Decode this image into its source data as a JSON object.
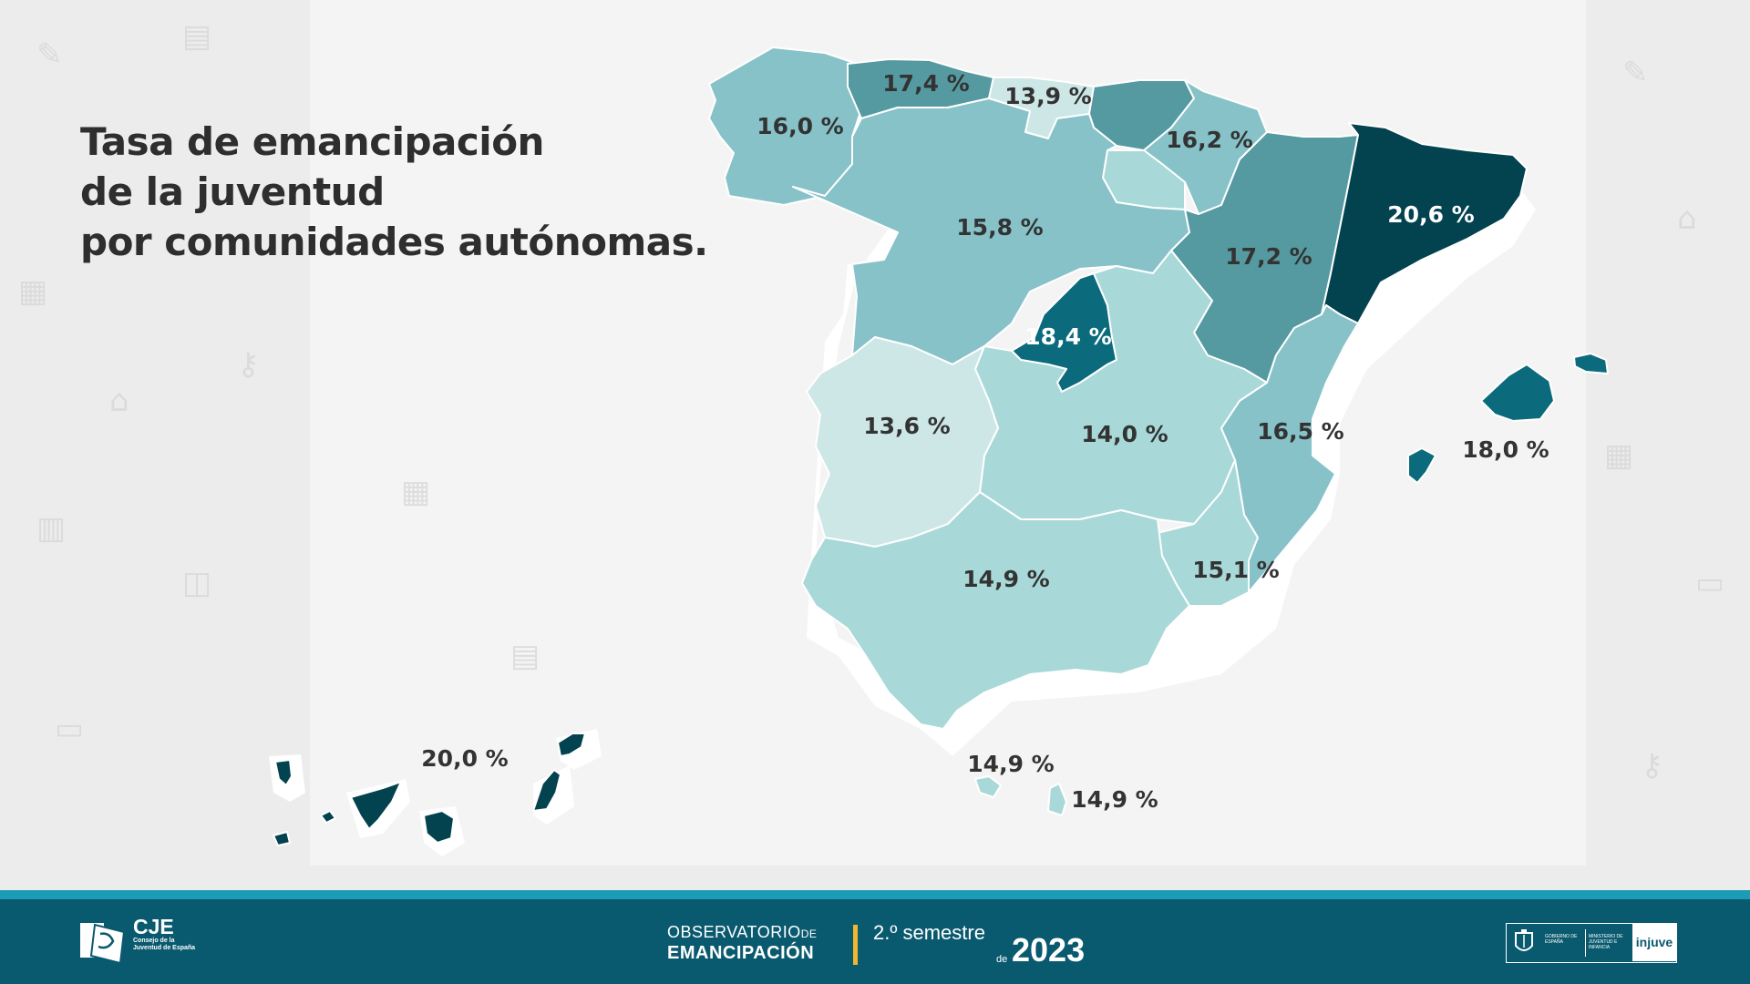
{
  "title": {
    "line1": "Tasa de emancipación",
    "line2": "de la juventud",
    "line3": "por comunidades autónomas."
  },
  "regions": {
    "galicia": "16,0 %",
    "asturias": "17,4 %",
    "cantabria": "13,9 %",
    "navarra": "16,2 %",
    "cataluna": "20,6 %",
    "castilla_leon": "15,8 %",
    "aragon": "17,2 %",
    "madrid": "18,4 %",
    "extremadura": "13,6 %",
    "castilla_la_mancha": "14,0 %",
    "valencia": "16,5 %",
    "baleares": "18,0 %",
    "andalucia": "14,9 %",
    "murcia": "15,1 %",
    "ceuta": "14,9 %",
    "melilla": "14,9 %",
    "canarias": "20,0 %"
  },
  "legend_colors": {
    "lightest": "#cde6e6",
    "light": "#a8d8d8",
    "mid_light": "#86c2c8",
    "mid": "#549aa0",
    "dark": "#0b6b7c",
    "darkest": "#03424f"
  },
  "footer": {
    "cje_name": "CJE",
    "cje_sub": "Consejo de la Juventud de España",
    "obs_top": "OBSERVATORIO",
    "obs_de": "DE",
    "obs_bottom": "EMANCIPACIÓN",
    "semester": "2.º semestre",
    "semester_de": "de",
    "year": "2023",
    "gov_text": "GOBIERNO DE ESPAÑA",
    "ministry_text": "MINISTERIO DE JUVENTUD E INFANCIA",
    "injuve": "injuve"
  }
}
